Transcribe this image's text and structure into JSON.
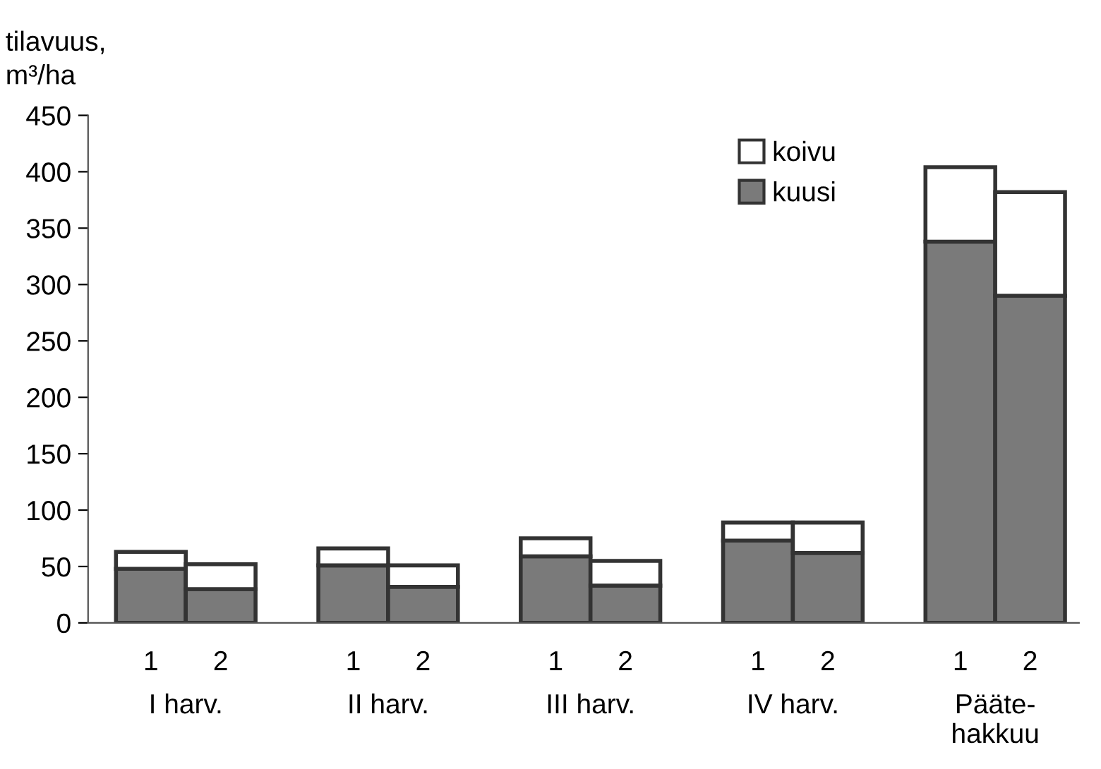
{
  "chart_data": {
    "type": "bar",
    "stacked": true,
    "ylabel": "tilavuus,\nm³/ha",
    "categories": [
      "1",
      "2",
      "1",
      "2",
      "1",
      "2",
      "1",
      "2",
      "1",
      "2"
    ],
    "series": [
      {
        "name": "kuusi",
        "color": "#7a7a7a",
        "values": [
          48,
          30,
          51,
          32,
          59,
          33,
          73,
          62,
          338,
          290
        ]
      },
      {
        "name": "koivu",
        "color": "#ffffff",
        "values": [
          15,
          22,
          15,
          19,
          16,
          22,
          16,
          27,
          66,
          92
        ]
      }
    ],
    "annotations": [
      "I harv.",
      "II harv.",
      "III harv.",
      "IV harv.",
      "Pääte-\nhakkuu"
    ],
    "ylim": [
      0,
      450
    ],
    "yticks": [
      0,
      50,
      100,
      150,
      200,
      250,
      300,
      350,
      400,
      450
    ],
    "grid": false,
    "legend": "top right"
  }
}
